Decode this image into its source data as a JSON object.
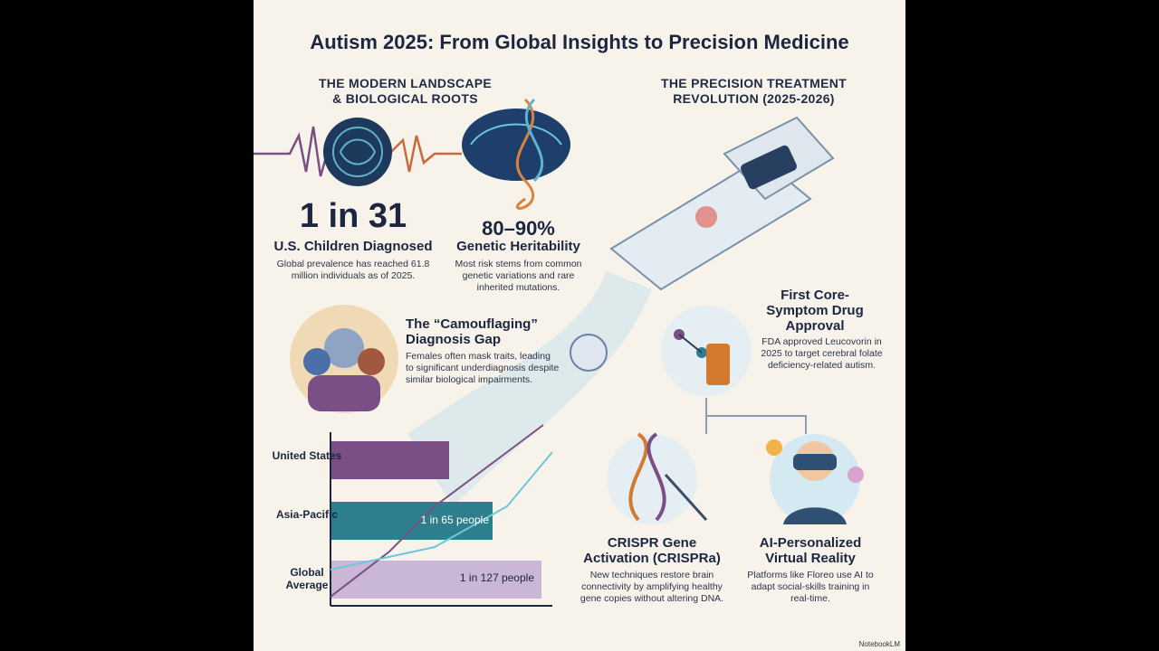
{
  "title": "Autism 2025: From Global Insights to Precision Medicine",
  "left_section": {
    "heading": "THE MODERN LANDSCAPE\n& BIOLOGICAL ROOTS",
    "stat1": {
      "value": "1 in 31",
      "label": "U.S. Children Diagnosed",
      "desc": "Global prevalence has reached 61.8 million individuals as of 2025."
    },
    "stat2": {
      "value": "80–90%",
      "label": "Genetic Heritability",
      "desc": "Most risk stems from common genetic variations and rare inherited mutations."
    },
    "camouflage": {
      "title": "The “Camouflaging” Diagnosis Gap",
      "desc": "Females often mask traits, leading to significant underdiagnosis despite similar biological impairments."
    }
  },
  "right_section": {
    "heading": "THE PRECISION TREATMENT\nREVOLUTION (2025-2026)",
    "drug": {
      "title": "First Core-Symptom Drug Approval",
      "desc": "FDA approved Leucovorin in 2025 to target cerebral folate deficiency-related autism."
    },
    "crispr": {
      "title": "CRISPR Gene Activation (CRISPRa)",
      "desc": "New techniques restore brain connectivity by amplifying healthy gene copies without altering DNA."
    },
    "vr": {
      "title": "AI-Personalized Virtual Reality",
      "desc": "Platforms like Floreo use AI to adapt social-skills training in real-time."
    }
  },
  "chart_data": {
    "type": "bar",
    "categories": [
      "United States",
      "Asia-Pacific",
      "Global Average"
    ],
    "bar_labels": [
      "",
      "1 in 65 people",
      "1 in 127 people"
    ],
    "colors": [
      "#7a4f86",
      "#2e7f8e",
      "#b59ccc"
    ]
  },
  "watermark": "NotebookLM"
}
